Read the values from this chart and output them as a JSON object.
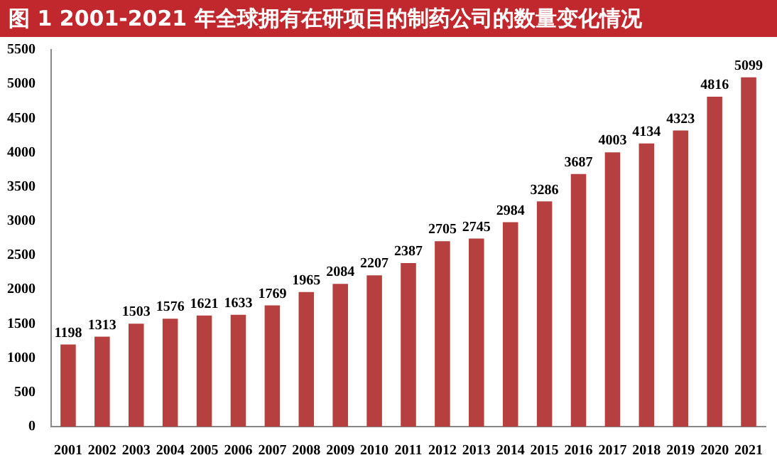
{
  "chart_data": {
    "type": "bar",
    "title": "图 1   2001-2021 年全球拥有在研项目的制药公司的数量变化情况",
    "categories": [
      "2001",
      "2002",
      "2003",
      "2004",
      "2005",
      "2006",
      "2007",
      "2008",
      "2009",
      "2010",
      "2011",
      "2012",
      "2013",
      "2014",
      "2015",
      "2016",
      "2017",
      "2018",
      "2019",
      "2020",
      "2021"
    ],
    "values": [
      1198,
      1313,
      1503,
      1576,
      1621,
      1633,
      1769,
      1965,
      2084,
      2207,
      2387,
      2705,
      2745,
      2984,
      3286,
      3687,
      4003,
      4134,
      4323,
      4816,
      5099
    ],
    "color": "#b5403f",
    "ylim": [
      0,
      5500
    ],
    "yticks": [
      0,
      500,
      1000,
      1500,
      2000,
      2500,
      3000,
      3500,
      4000,
      4500,
      5000,
      5500
    ],
    "grid": false,
    "legend": false,
    "data_labels": true
  }
}
